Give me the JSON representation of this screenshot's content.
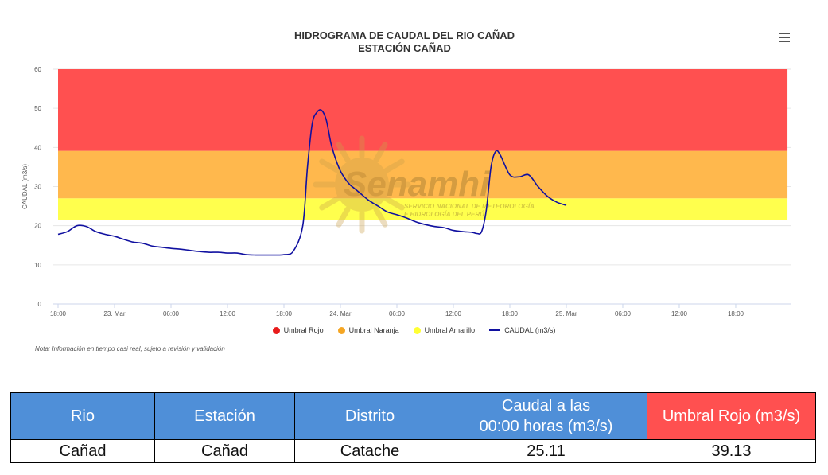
{
  "chart": {
    "title_line1": "HIDROGRAMA DE CAUDAL DEL RIO CAÑAD",
    "title_line2": "ESTACIÓN CAÑAD",
    "menu_icon": "hamburger-menu-icon",
    "note": "Nota: Información en tiempo casi real, sujeto a revisión y validación",
    "watermark": {
      "name": "Senamhi",
      "line1": "SERVICIO NACIONAL DE METEOROLOGÍA",
      "line2": "E HIDROLOGÍA DEL PERÚ"
    }
  },
  "chart_data": {
    "type": "line",
    "ylabel": "CAUDAL (m3/s)",
    "ylim": [
      0,
      60
    ],
    "yticks": [
      0,
      10,
      20,
      30,
      40,
      50,
      60
    ],
    "xlim": [
      0,
      78
    ],
    "xtick_labels": [
      {
        "h": 0,
        "label": "18:00"
      },
      {
        "h": 6,
        "label": "23. Mar"
      },
      {
        "h": 12,
        "label": "06:00"
      },
      {
        "h": 18,
        "label": "12:00"
      },
      {
        "h": 24,
        "label": "18:00"
      },
      {
        "h": 30,
        "label": "24. Mar"
      },
      {
        "h": 36,
        "label": "06:00"
      },
      {
        "h": 42,
        "label": "12:00"
      },
      {
        "h": 48,
        "label": "18:00"
      },
      {
        "h": 54,
        "label": "25. Mar"
      },
      {
        "h": 60,
        "label": "06:00"
      },
      {
        "h": 66,
        "label": "12:00"
      },
      {
        "h": 72,
        "label": "18:00"
      }
    ],
    "bands": [
      {
        "name": "Umbral Amarillo",
        "from": 21.5,
        "to": 27,
        "color": "#ffff4d"
      },
      {
        "name": "Umbral Naranja",
        "from": 27,
        "to": 39.13,
        "color": "#ffb84d"
      },
      {
        "name": "Umbral Rojo",
        "from": 39.13,
        "to": 60,
        "color": "#ff5050"
      }
    ],
    "band_x_range": [
      0,
      77.5
    ],
    "legend": [
      {
        "name": "Umbral Rojo",
        "color": "#e81b1b",
        "kind": "dot"
      },
      {
        "name": "Umbral Naranja",
        "color": "#f5a623",
        "kind": "dot"
      },
      {
        "name": "Umbral Amarillo",
        "color": "#ffff33",
        "kind": "dot"
      },
      {
        "name": "CAUDAL (m3/s)",
        "color": "#1010a0",
        "kind": "line"
      }
    ],
    "series": [
      {
        "name": "CAUDAL (m3/s)",
        "color": "#1010a0",
        "x": [
          0,
          1,
          2,
          3,
          4,
          5,
          6,
          7,
          8,
          9,
          10,
          11,
          12,
          13,
          14,
          15,
          16,
          17,
          18,
          19,
          20,
          21,
          22,
          22.5,
          23,
          24,
          25,
          26,
          26.5,
          27,
          27.5,
          28,
          28.5,
          29,
          29.5,
          30,
          30.5,
          31,
          31.5,
          32,
          33,
          34,
          35,
          36,
          37,
          38,
          39,
          40,
          41,
          42,
          43,
          44,
          44.5,
          45,
          45.5,
          46,
          46.5,
          47,
          48,
          49,
          50,
          51,
          52,
          53,
          54
        ],
        "values": [
          17.8,
          18.5,
          20.0,
          19.8,
          18.5,
          17.8,
          17.3,
          16.5,
          15.8,
          15.5,
          14.8,
          14.5,
          14.2,
          14.0,
          13.7,
          13.4,
          13.2,
          13.2,
          13.0,
          13.0,
          12.6,
          12.5,
          12.5,
          12.5,
          12.5,
          12.6,
          13.5,
          20.0,
          35.0,
          46.0,
          49.0,
          49.5,
          47.0,
          41.0,
          37.0,
          34.0,
          32.0,
          30.5,
          29.5,
          28.5,
          26.5,
          25.0,
          23.5,
          22.8,
          22.0,
          21.0,
          20.3,
          19.8,
          19.5,
          18.8,
          18.5,
          18.3,
          18.0,
          18.5,
          24.0,
          35.0,
          39.0,
          38.0,
          33.0,
          32.5,
          33.0,
          30.0,
          27.5,
          26.0,
          25.2
        ]
      }
    ]
  },
  "table": {
    "headers": [
      {
        "label_line1": "Rio",
        "label_line2": "",
        "color": "#4f8fd8"
      },
      {
        "label_line1": "Estación",
        "label_line2": "",
        "color": "#4f8fd8"
      },
      {
        "label_line1": "Distrito",
        "label_line2": "",
        "color": "#4f8fd8"
      },
      {
        "label_line1": "Caudal a las",
        "label_line2": "00:00 horas (m3/s)",
        "color": "#4f8fd8"
      },
      {
        "label_line1": "Umbral Rojo (m3/s)",
        "label_line2": "",
        "color": "#ff5050"
      }
    ],
    "row": [
      "Cañad",
      "Cañad",
      "Catache",
      "25.11",
      "39.13"
    ]
  }
}
